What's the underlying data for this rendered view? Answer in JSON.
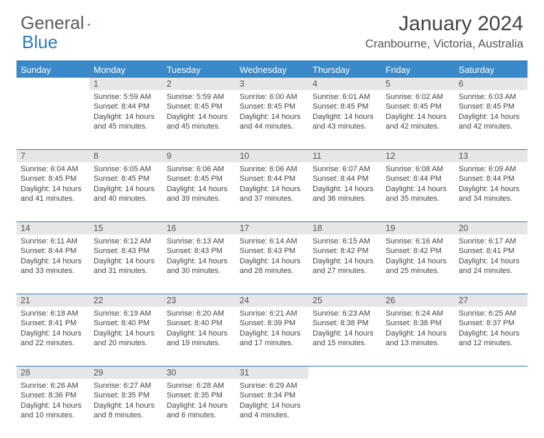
{
  "brand": {
    "part1": "General",
    "part2": "Blue"
  },
  "title": "January 2024",
  "location": "Cranbourne, Victoria, Australia",
  "header_bg": "#3a8ac9",
  "border_color": "#2b7bbf",
  "daynum_bg": "#e6e6e6",
  "text_color": "#444444",
  "font_size_cell": 11,
  "day_names": [
    "Sunday",
    "Monday",
    "Tuesday",
    "Wednesday",
    "Thursday",
    "Friday",
    "Saturday"
  ],
  "weeks": [
    [
      {
        "blank": true
      },
      {
        "day": "1",
        "sunrise": "Sunrise: 5:59 AM",
        "sunset": "Sunset: 8:44 PM",
        "daylight": "Daylight: 14 hours and 45 minutes."
      },
      {
        "day": "2",
        "sunrise": "Sunrise: 5:59 AM",
        "sunset": "Sunset: 8:45 PM",
        "daylight": "Daylight: 14 hours and 45 minutes."
      },
      {
        "day": "3",
        "sunrise": "Sunrise: 6:00 AM",
        "sunset": "Sunset: 8:45 PM",
        "daylight": "Daylight: 14 hours and 44 minutes."
      },
      {
        "day": "4",
        "sunrise": "Sunrise: 6:01 AM",
        "sunset": "Sunset: 8:45 PM",
        "daylight": "Daylight: 14 hours and 43 minutes."
      },
      {
        "day": "5",
        "sunrise": "Sunrise: 6:02 AM",
        "sunset": "Sunset: 8:45 PM",
        "daylight": "Daylight: 14 hours and 42 minutes."
      },
      {
        "day": "6",
        "sunrise": "Sunrise: 6:03 AM",
        "sunset": "Sunset: 8:45 PM",
        "daylight": "Daylight: 14 hours and 42 minutes."
      }
    ],
    [
      {
        "day": "7",
        "sunrise": "Sunrise: 6:04 AM",
        "sunset": "Sunset: 8:45 PM",
        "daylight": "Daylight: 14 hours and 41 minutes."
      },
      {
        "day": "8",
        "sunrise": "Sunrise: 6:05 AM",
        "sunset": "Sunset: 8:45 PM",
        "daylight": "Daylight: 14 hours and 40 minutes."
      },
      {
        "day": "9",
        "sunrise": "Sunrise: 6:06 AM",
        "sunset": "Sunset: 8:45 PM",
        "daylight": "Daylight: 14 hours and 39 minutes."
      },
      {
        "day": "10",
        "sunrise": "Sunrise: 6:06 AM",
        "sunset": "Sunset: 8:44 PM",
        "daylight": "Daylight: 14 hours and 37 minutes."
      },
      {
        "day": "11",
        "sunrise": "Sunrise: 6:07 AM",
        "sunset": "Sunset: 8:44 PM",
        "daylight": "Daylight: 14 hours and 36 minutes."
      },
      {
        "day": "12",
        "sunrise": "Sunrise: 6:08 AM",
        "sunset": "Sunset: 8:44 PM",
        "daylight": "Daylight: 14 hours and 35 minutes."
      },
      {
        "day": "13",
        "sunrise": "Sunrise: 6:09 AM",
        "sunset": "Sunset: 8:44 PM",
        "daylight": "Daylight: 14 hours and 34 minutes."
      }
    ],
    [
      {
        "day": "14",
        "sunrise": "Sunrise: 6:11 AM",
        "sunset": "Sunset: 8:44 PM",
        "daylight": "Daylight: 14 hours and 33 minutes."
      },
      {
        "day": "15",
        "sunrise": "Sunrise: 6:12 AM",
        "sunset": "Sunset: 8:43 PM",
        "daylight": "Daylight: 14 hours and 31 minutes."
      },
      {
        "day": "16",
        "sunrise": "Sunrise: 6:13 AM",
        "sunset": "Sunset: 8:43 PM",
        "daylight": "Daylight: 14 hours and 30 minutes."
      },
      {
        "day": "17",
        "sunrise": "Sunrise: 6:14 AM",
        "sunset": "Sunset: 8:43 PM",
        "daylight": "Daylight: 14 hours and 28 minutes."
      },
      {
        "day": "18",
        "sunrise": "Sunrise: 6:15 AM",
        "sunset": "Sunset: 8:42 PM",
        "daylight": "Daylight: 14 hours and 27 minutes."
      },
      {
        "day": "19",
        "sunrise": "Sunrise: 6:16 AM",
        "sunset": "Sunset: 8:42 PM",
        "daylight": "Daylight: 14 hours and 25 minutes."
      },
      {
        "day": "20",
        "sunrise": "Sunrise: 6:17 AM",
        "sunset": "Sunset: 8:41 PM",
        "daylight": "Daylight: 14 hours and 24 minutes."
      }
    ],
    [
      {
        "day": "21",
        "sunrise": "Sunrise: 6:18 AM",
        "sunset": "Sunset: 8:41 PM",
        "daylight": "Daylight: 14 hours and 22 minutes."
      },
      {
        "day": "22",
        "sunrise": "Sunrise: 6:19 AM",
        "sunset": "Sunset: 8:40 PM",
        "daylight": "Daylight: 14 hours and 20 minutes."
      },
      {
        "day": "23",
        "sunrise": "Sunrise: 6:20 AM",
        "sunset": "Sunset: 8:40 PM",
        "daylight": "Daylight: 14 hours and 19 minutes."
      },
      {
        "day": "24",
        "sunrise": "Sunrise: 6:21 AM",
        "sunset": "Sunset: 8:39 PM",
        "daylight": "Daylight: 14 hours and 17 minutes."
      },
      {
        "day": "25",
        "sunrise": "Sunrise: 6:23 AM",
        "sunset": "Sunset: 8:38 PM",
        "daylight": "Daylight: 14 hours and 15 minutes."
      },
      {
        "day": "26",
        "sunrise": "Sunrise: 6:24 AM",
        "sunset": "Sunset: 8:38 PM",
        "daylight": "Daylight: 14 hours and 13 minutes."
      },
      {
        "day": "27",
        "sunrise": "Sunrise: 6:25 AM",
        "sunset": "Sunset: 8:37 PM",
        "daylight": "Daylight: 14 hours and 12 minutes."
      }
    ],
    [
      {
        "day": "28",
        "sunrise": "Sunrise: 6:26 AM",
        "sunset": "Sunset: 8:36 PM",
        "daylight": "Daylight: 14 hours and 10 minutes."
      },
      {
        "day": "29",
        "sunrise": "Sunrise: 6:27 AM",
        "sunset": "Sunset: 8:35 PM",
        "daylight": "Daylight: 14 hours and 8 minutes."
      },
      {
        "day": "30",
        "sunrise": "Sunrise: 6:28 AM",
        "sunset": "Sunset: 8:35 PM",
        "daylight": "Daylight: 14 hours and 6 minutes."
      },
      {
        "day": "31",
        "sunrise": "Sunrise: 6:29 AM",
        "sunset": "Sunset: 8:34 PM",
        "daylight": "Daylight: 14 hours and 4 minutes."
      },
      {
        "blank": true
      },
      {
        "blank": true
      },
      {
        "blank": true
      }
    ]
  ]
}
